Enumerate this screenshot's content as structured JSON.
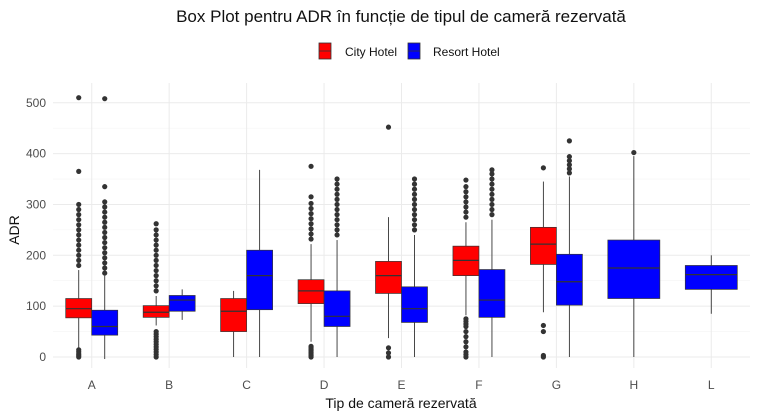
{
  "chart_data": {
    "type": "box",
    "title": "Box Plot pentru ADR în funcție de tipul de cameră rezervată",
    "xlabel": "Tip de cameră rezervată",
    "ylabel": "ADR",
    "categories": [
      "A",
      "B",
      "C",
      "D",
      "E",
      "F",
      "G",
      "H",
      "L"
    ],
    "yticks": [
      0,
      100,
      200,
      300,
      400,
      500
    ],
    "ylim": [
      -20,
      520
    ],
    "grid": true,
    "legend_position": "top",
    "series": [
      {
        "name": "City Hotel",
        "color": "#ff0000",
        "boxes": [
          {
            "category": "A",
            "whisker_low": 0,
            "q1": 77,
            "median": 95,
            "q3": 115,
            "whisker_high": 171,
            "outliers_high": [
              180,
              190,
              200,
              210,
              220,
              230,
              240,
              250,
              260,
              270,
              280,
              290,
              300,
              365,
              510
            ],
            "outliers_low": [
              0,
              3,
              6,
              10,
              14
            ]
          },
          {
            "category": "B",
            "whisker_low": 62,
            "q1": 78,
            "median": 88,
            "q3": 101,
            "whisker_high": 120,
            "outliers_high": [
              130,
              140,
              150,
              160,
              170,
              180,
              190,
              200,
              210,
              220,
              230,
              240,
              250,
              262
            ],
            "outliers_low": [
              0,
              5,
              10,
              15,
              20,
              25,
              30,
              35,
              40,
              45,
              50
            ]
          },
          {
            "category": "C",
            "whisker_low": 0,
            "q1": 50,
            "median": 90,
            "q3": 115,
            "whisker_high": 130,
            "outliers_high": [],
            "outliers_low": []
          },
          {
            "category": "D",
            "whisker_low": 30,
            "q1": 105,
            "median": 130,
            "q3": 152,
            "whisker_high": 222,
            "outliers_high": [
              232,
              242,
              252,
              262,
              272,
              282,
              292,
              302,
              315,
              375
            ],
            "outliers_low": [
              0,
              3,
              6,
              9,
              12,
              15,
              18,
              21
            ]
          },
          {
            "category": "E",
            "whisker_low": 37,
            "q1": 125,
            "median": 160,
            "q3": 188,
            "whisker_high": 275,
            "outliers_high": [
              452
            ],
            "outliers_low": [
              0,
              8,
              18
            ]
          },
          {
            "category": "F",
            "whisker_low": 82,
            "q1": 160,
            "median": 190,
            "q3": 218,
            "whisker_high": 265,
            "outliers_high": [
              275,
              285,
              295,
              305,
              315,
              325,
              335,
              348
            ],
            "outliers_low": [
              0,
              5,
              10,
              20,
              30,
              40,
              50,
              60,
              65,
              70,
              75
            ]
          },
          {
            "category": "G",
            "whisker_low": 88,
            "q1": 182,
            "median": 222,
            "q3": 255,
            "whisker_high": 345,
            "outliers_high": [
              372
            ],
            "outliers_low": [
              0,
              3,
              50,
              62
            ]
          }
        ]
      },
      {
        "name": "Resort Hotel",
        "color": "#0000ff",
        "boxes": [
          {
            "category": "A",
            "whisker_low": -4,
            "q1": 43,
            "median": 60,
            "q3": 92,
            "whisker_high": 160,
            "outliers_high": [
              165,
              175,
              185,
              195,
              205,
              215,
              225,
              235,
              245,
              255,
              265,
              275,
              285,
              295,
              305,
              335,
              508
            ],
            "outliers_low": []
          },
          {
            "category": "B",
            "whisker_low": 73,
            "q1": 90,
            "median": 112,
            "q3": 121,
            "whisker_high": 133,
            "outliers_high": [],
            "outliers_low": []
          },
          {
            "category": "C",
            "whisker_low": 0,
            "q1": 93,
            "median": 160,
            "q3": 210,
            "whisker_high": 368,
            "outliers_high": [],
            "outliers_low": []
          },
          {
            "category": "D",
            "whisker_low": 0,
            "q1": 60,
            "median": 80,
            "q3": 130,
            "whisker_high": 230,
            "outliers_high": [
              240,
              250,
              260,
              270,
              280,
              290,
              300,
              310,
              320,
              330,
              340,
              350
            ],
            "outliers_low": []
          },
          {
            "category": "E",
            "whisker_low": 0,
            "q1": 68,
            "median": 95,
            "q3": 138,
            "whisker_high": 240,
            "outliers_high": [
              250,
              260,
              270,
              280,
              290,
              300,
              310,
              320,
              330,
              340,
              350
            ],
            "outliers_low": []
          },
          {
            "category": "F",
            "whisker_low": 0,
            "q1": 78,
            "median": 112,
            "q3": 172,
            "whisker_high": 270,
            "outliers_high": [
              280,
              290,
              300,
              310,
              320,
              330,
              340,
              350,
              360,
              368
            ],
            "outliers_low": []
          },
          {
            "category": "G",
            "whisker_low": 0,
            "q1": 102,
            "median": 148,
            "q3": 202,
            "whisker_high": 355,
            "outliers_high": [
              362,
              370,
              378,
              386,
              394,
              425
            ],
            "outliers_low": []
          },
          {
            "category": "H",
            "whisker_low": 0,
            "q1": 115,
            "median": 175,
            "q3": 230,
            "whisker_high": 395,
            "outliers_high": [
              402
            ],
            "outliers_low": []
          },
          {
            "category": "L",
            "whisker_low": 85,
            "q1": 133,
            "median": 162,
            "q3": 180,
            "whisker_high": 200,
            "outliers_high": [],
            "outliers_low": []
          }
        ]
      }
    ]
  }
}
